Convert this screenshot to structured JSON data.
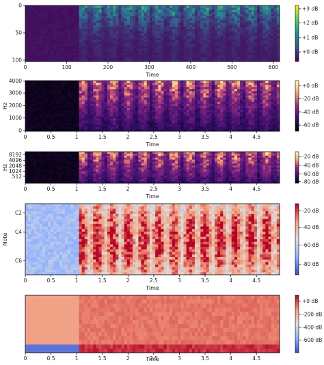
{
  "chart_data": [
    {
      "type": "heatmap",
      "xlabel": "Time",
      "ylabel": "",
      "xlim": [
        0,
        615
      ],
      "ylim": [
        128,
        0
      ],
      "xticks": [
        "0",
        "100",
        "200",
        "300",
        "400",
        "500",
        "600"
      ],
      "yticks": [
        "0",
        "50",
        "100"
      ],
      "colormap": "viridis",
      "colorbar_ticks": [
        "+3 dB",
        "+2 dB",
        "+1 dB",
        "+0 dB"
      ],
      "silence_end": 1.03,
      "duration": 4.95
    },
    {
      "type": "heatmap",
      "xlabel": "Time",
      "ylabel": "Hz",
      "xlim": [
        0,
        4.95
      ],
      "xticks": [
        "0",
        "0.5",
        "1",
        "1.5",
        "2",
        "2.5",
        "3",
        "3.5",
        "4",
        "4.5"
      ],
      "yticks": [
        "0",
        "1000",
        "2000",
        "3000",
        "4000"
      ],
      "colormap": "magma",
      "colorbar_ticks": [
        "+0 dB",
        "-20 dB",
        "-40 dB",
        "-60 dB"
      ],
      "silence_end": 1.03,
      "duration": 4.95
    },
    {
      "type": "heatmap",
      "xlabel": "Time",
      "ylabel": "Hz",
      "xlim": [
        0,
        4.95
      ],
      "xticks": [
        "0",
        "0.5",
        "1",
        "1.5",
        "2",
        "2.5",
        "3",
        "3.5",
        "4",
        "4.5"
      ],
      "yticks": [
        "512",
        "1024",
        "2048",
        "4096",
        "8192"
      ],
      "colormap": "magma",
      "colorbar_ticks": [
        "-20 dB",
        "-40 dB",
        "-60 dB",
        "-80 dB"
      ],
      "silence_end": 1.03,
      "duration": 4.95
    },
    {
      "type": "heatmap",
      "xlabel": "Time",
      "ylabel": "Note",
      "xlim": [
        0,
        4.95
      ],
      "xticks": [
        "0",
        "0.5",
        "1",
        "1.5",
        "2",
        "2.5",
        "3",
        "3.5",
        "4",
        "4.5"
      ],
      "yticks": [
        "C2",
        "C4",
        "C6"
      ],
      "colormap": "coolwarm",
      "colorbar_ticks": [
        "-20 dB",
        "-40 dB",
        "-60 dB",
        "-80 dB"
      ],
      "silence_end": 1.03,
      "duration": 4.95
    },
    {
      "type": "heatmap",
      "xlabel": "Time",
      "ylabel": "",
      "xlim": [
        0,
        4.95
      ],
      "xticks": [
        "0",
        "0.5",
        "1",
        "1.5",
        "2",
        "2.5",
        "3",
        "3.5",
        "4",
        "4.5"
      ],
      "yticks": [],
      "colormap": "coolwarm",
      "colorbar_ticks": [
        "+0 dB",
        "-200 dB",
        "-400 dB",
        "-600 dB"
      ],
      "silence_end": 1.03,
      "duration": 4.95
    }
  ]
}
